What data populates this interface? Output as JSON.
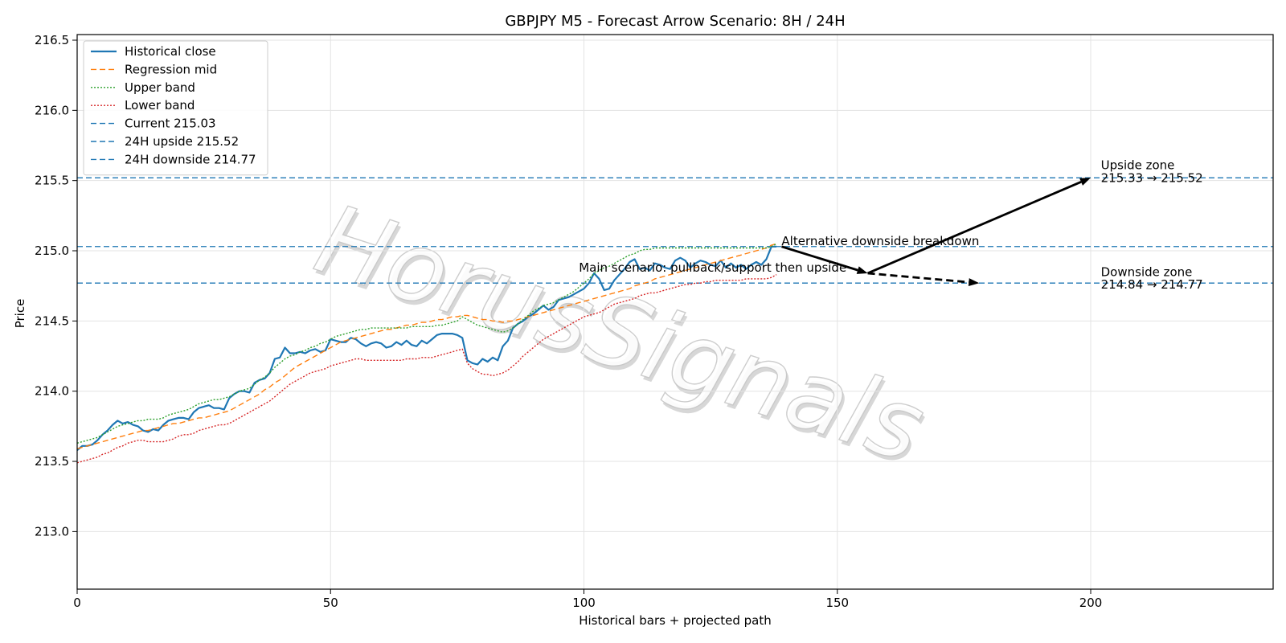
{
  "chart_data": {
    "type": "line",
    "title": "GBPJPY M5 - Forecast Arrow Scenario: 8H / 24H",
    "xlabel": "Historical bars + projected path",
    "ylabel": "Price",
    "xlim": [
      0,
      236
    ],
    "ylim": [
      212.59,
      216.54
    ],
    "xticks": [
      0,
      50,
      100,
      150,
      200
    ],
    "yticks": [
      213.0,
      213.5,
      214.0,
      214.5,
      215.0,
      215.5,
      216.0,
      216.5
    ],
    "grid": true,
    "legend_position": "upper-left",
    "watermark": "HorusSignals",
    "series": [
      {
        "name": "Historical close",
        "color": "#1f77b4",
        "style": "solid",
        "x_start": 0,
        "x_step": 1,
        "values": [
          213.58,
          213.61,
          213.61,
          213.62,
          213.65,
          213.69,
          213.72,
          213.76,
          213.79,
          213.77,
          213.78,
          213.76,
          213.75,
          213.72,
          213.71,
          213.73,
          213.72,
          213.76,
          213.79,
          213.8,
          213.81,
          213.81,
          213.8,
          213.85,
          213.88,
          213.89,
          213.9,
          213.88,
          213.88,
          213.87,
          213.95,
          213.98,
          214.0,
          214.0,
          213.99,
          214.06,
          214.08,
          214.09,
          214.13,
          214.23,
          214.24,
          214.31,
          214.27,
          214.27,
          214.28,
          214.27,
          214.29,
          214.3,
          214.28,
          214.29,
          214.37,
          214.36,
          214.35,
          214.35,
          214.38,
          214.37,
          214.34,
          214.32,
          214.34,
          214.35,
          214.34,
          214.31,
          214.32,
          214.35,
          214.33,
          214.36,
          214.33,
          214.32,
          214.36,
          214.34,
          214.37,
          214.4,
          214.41,
          214.41,
          214.41,
          214.4,
          214.38,
          214.22,
          214.2,
          214.19,
          214.23,
          214.21,
          214.24,
          214.22,
          214.32,
          214.36,
          214.45,
          214.48,
          214.5,
          214.53,
          214.55,
          214.58,
          214.61,
          214.58,
          214.6,
          214.65,
          214.66,
          214.67,
          214.69,
          214.71,
          214.73,
          214.77,
          214.84,
          214.8,
          214.72,
          214.73,
          214.79,
          214.83,
          214.87,
          214.92,
          214.94,
          214.87,
          214.88,
          214.86,
          214.91,
          214.9,
          214.88,
          214.87,
          214.93,
          214.95,
          214.93,
          214.88,
          214.91,
          214.93,
          214.92,
          214.9,
          214.89,
          214.93,
          214.88,
          214.91,
          214.88,
          214.9,
          214.87,
          214.9,
          214.92,
          214.9,
          214.94,
          215.03,
          215.03
        ]
      },
      {
        "name": "Regression mid",
        "color": "#ff7f0e",
        "style": "dashed",
        "x_start": 0,
        "x_step": 1,
        "values": [
          213.59,
          213.6,
          213.61,
          213.62,
          213.63,
          213.64,
          213.65,
          213.66,
          213.67,
          213.68,
          213.69,
          213.7,
          213.71,
          213.72,
          213.72,
          213.73,
          213.74,
          213.75,
          213.76,
          213.77,
          213.77,
          213.78,
          213.79,
          213.8,
          213.81,
          213.81,
          213.82,
          213.83,
          213.84,
          213.85,
          213.86,
          213.88,
          213.9,
          213.92,
          213.94,
          213.96,
          213.98,
          214.01,
          214.03,
          214.06,
          214.08,
          214.11,
          214.14,
          214.17,
          214.19,
          214.21,
          214.23,
          214.25,
          214.27,
          214.29,
          214.31,
          214.33,
          214.35,
          214.36,
          214.37,
          214.38,
          214.39,
          214.4,
          214.41,
          214.42,
          214.43,
          214.44,
          214.44,
          214.45,
          214.46,
          214.47,
          214.47,
          214.48,
          214.49,
          214.49,
          214.5,
          214.51,
          214.51,
          214.52,
          214.53,
          214.53,
          214.54,
          214.54,
          214.53,
          214.52,
          214.51,
          214.51,
          214.5,
          214.5,
          214.49,
          214.5,
          214.5,
          214.51,
          214.52,
          214.53,
          214.54,
          214.55,
          214.56,
          214.57,
          214.58,
          214.59,
          214.6,
          214.61,
          214.62,
          214.63,
          214.64,
          214.65,
          214.66,
          214.67,
          214.68,
          214.69,
          214.7,
          214.71,
          214.72,
          214.73,
          214.75,
          214.76,
          214.77,
          214.78,
          214.8,
          214.81,
          214.82,
          214.83,
          214.84,
          214.85,
          214.86,
          214.87,
          214.88,
          214.89,
          214.9,
          214.91,
          214.92,
          214.93,
          214.94,
          214.95,
          214.96,
          214.97,
          214.98,
          214.99,
          215.0,
          215.01,
          215.02,
          215.04,
          215.05
        ]
      },
      {
        "name": "Upper band",
        "color": "#2ca02c",
        "style": "dotted",
        "x_start": 0,
        "x_step": 1,
        "values": [
          213.63,
          213.64,
          213.65,
          213.66,
          213.67,
          213.69,
          213.71,
          213.73,
          213.75,
          213.76,
          213.77,
          213.78,
          213.79,
          213.79,
          213.8,
          213.8,
          213.8,
          213.81,
          213.83,
          213.84,
          213.85,
          213.86,
          213.87,
          213.89,
          213.91,
          213.92,
          213.93,
          213.94,
          213.94,
          213.95,
          213.96,
          213.98,
          214.0,
          214.01,
          214.02,
          214.05,
          214.08,
          214.1,
          214.13,
          214.17,
          214.2,
          214.23,
          214.25,
          214.26,
          214.28,
          214.29,
          214.31,
          214.32,
          214.34,
          214.35,
          214.37,
          214.39,
          214.4,
          214.41,
          214.42,
          214.43,
          214.44,
          214.44,
          214.45,
          214.45,
          214.45,
          214.45,
          214.45,
          214.45,
          214.45,
          214.45,
          214.46,
          214.46,
          214.46,
          214.46,
          214.46,
          214.47,
          214.47,
          214.48,
          214.49,
          214.5,
          214.53,
          214.51,
          214.49,
          214.47,
          214.46,
          214.45,
          214.44,
          214.43,
          214.42,
          214.43,
          214.45,
          214.48,
          214.51,
          214.54,
          214.57,
          214.59,
          214.61,
          214.62,
          214.63,
          214.65,
          214.67,
          214.69,
          214.71,
          214.74,
          214.77,
          214.8,
          214.84,
          214.86,
          214.88,
          214.89,
          214.91,
          214.93,
          214.95,
          214.97,
          214.98,
          215.0,
          215.01,
          215.01,
          215.02,
          215.02,
          215.02,
          215.02,
          215.02,
          215.02,
          215.02,
          215.02,
          215.02,
          215.02,
          215.02,
          215.02,
          215.02,
          215.02,
          215.02,
          215.02,
          215.02,
          215.02,
          215.02,
          215.02,
          215.02,
          215.02,
          215.02,
          215.03,
          215.05
        ]
      },
      {
        "name": "Lower band",
        "color": "#d62728",
        "style": "dotted",
        "x_start": 0,
        "x_step": 1,
        "values": [
          213.49,
          213.5,
          213.51,
          213.52,
          213.53,
          213.55,
          213.56,
          213.58,
          213.6,
          213.61,
          213.63,
          213.64,
          213.65,
          213.65,
          213.64,
          213.64,
          213.64,
          213.64,
          213.65,
          213.66,
          213.68,
          213.69,
          213.69,
          213.7,
          213.72,
          213.73,
          213.74,
          213.75,
          213.76,
          213.76,
          213.77,
          213.79,
          213.81,
          213.83,
          213.85,
          213.87,
          213.89,
          213.91,
          213.93,
          213.96,
          213.99,
          214.02,
          214.05,
          214.07,
          214.09,
          214.11,
          214.13,
          214.14,
          214.15,
          214.16,
          214.18,
          214.19,
          214.2,
          214.21,
          214.22,
          214.23,
          214.23,
          214.22,
          214.22,
          214.22,
          214.22,
          214.22,
          214.22,
          214.22,
          214.22,
          214.23,
          214.23,
          214.23,
          214.24,
          214.24,
          214.24,
          214.25,
          214.26,
          214.27,
          214.28,
          214.29,
          214.3,
          214.2,
          214.16,
          214.14,
          214.12,
          214.12,
          214.11,
          214.12,
          214.13,
          214.15,
          214.18,
          214.21,
          214.25,
          214.28,
          214.31,
          214.34,
          214.37,
          214.39,
          214.41,
          214.43,
          214.45,
          214.47,
          214.49,
          214.51,
          214.53,
          214.54,
          214.55,
          214.56,
          214.58,
          214.6,
          214.62,
          214.63,
          214.64,
          214.65,
          214.66,
          214.68,
          214.69,
          214.7,
          214.7,
          214.71,
          214.72,
          214.73,
          214.74,
          214.75,
          214.76,
          214.76,
          214.77,
          214.77,
          214.78,
          214.78,
          214.79,
          214.79,
          214.79,
          214.79,
          214.79,
          214.79,
          214.8,
          214.8,
          214.8,
          214.8,
          214.8,
          214.81,
          214.83
        ]
      }
    ],
    "hlines": [
      {
        "name": "Current 215.03",
        "y": 215.03,
        "color": "#1f77b4",
        "style": "dashed"
      },
      {
        "name": "24H upside 215.52",
        "y": 215.52,
        "color": "#1f77b4",
        "style": "dashed"
      },
      {
        "name": "24H downside 214.77",
        "y": 214.77,
        "color": "#1f77b4",
        "style": "dashed"
      }
    ],
    "arrows": [
      {
        "name": "main-8h",
        "from": [
          139,
          215.03
        ],
        "to": [
          156,
          214.84
        ],
        "style": "solid",
        "color": "#000000"
      },
      {
        "name": "main-24h",
        "from": [
          156,
          214.84
        ],
        "to": [
          200,
          215.52
        ],
        "style": "solid",
        "color": "#000000"
      },
      {
        "name": "alt-downside",
        "from": [
          156,
          214.84
        ],
        "to": [
          178,
          214.77
        ],
        "style": "dashed",
        "color": "#000000"
      }
    ],
    "annotations": [
      {
        "name": "annotation-main-scenario",
        "text": "Main scenario: pullback/support then upside",
        "x": 99,
        "y": 214.85
      },
      {
        "name": "annotation-alternative",
        "text": "Alternative downside breakdown",
        "x": 139,
        "y": 215.04
      },
      {
        "name": "annotation-upside-zone",
        "text": "Upside zone",
        "x": 202,
        "y": 215.58
      },
      {
        "name": "annotation-upside-range",
        "text": "215.33 → 215.52",
        "x": 202,
        "y": 215.49
      },
      {
        "name": "annotation-downside-zone",
        "text": "Downside zone",
        "x": 202,
        "y": 214.82
      },
      {
        "name": "annotation-downside-range",
        "text": "214.84 → 214.77",
        "x": 202,
        "y": 214.73
      }
    ]
  }
}
